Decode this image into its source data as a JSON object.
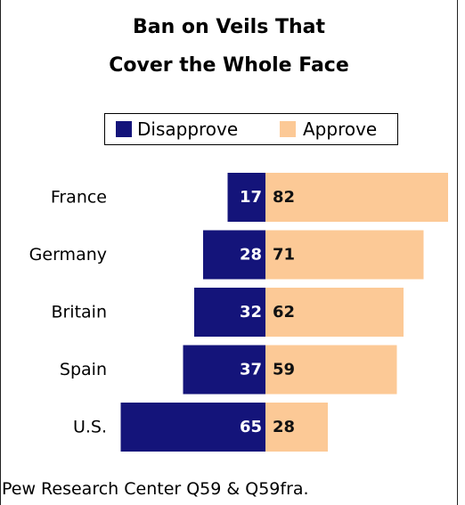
{
  "chart_data": {
    "type": "bar",
    "title_line1": "Ban on Veils That",
    "title_line2": "Cover the Whole Face",
    "categories": [
      "France",
      "Germany",
      "Britain",
      "Spain",
      "U.S."
    ],
    "series": [
      {
        "name": "Disapprove",
        "values": [
          17,
          28,
          32,
          37,
          65
        ],
        "color": "#14147a"
      },
      {
        "name": "Approve",
        "values": [
          82,
          71,
          62,
          59,
          28
        ],
        "color": "#fcc996"
      }
    ],
    "legend_position": "top",
    "layout": "diverging"
  },
  "source": "Pew Research Center Q59 & Q59fra."
}
